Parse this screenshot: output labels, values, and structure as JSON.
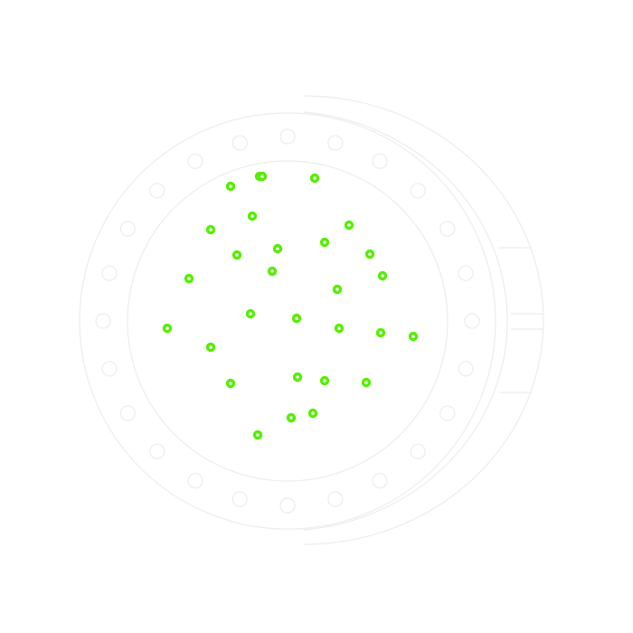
{
  "colors": {
    "background": "#ffffff",
    "outline": "#ececec",
    "marker": "#55ee00",
    "marker_center": "#ffffff"
  },
  "icon": "circular-flange-with-bolt-holes",
  "bolt_hole_count": 24,
  "marker_count": 30
}
